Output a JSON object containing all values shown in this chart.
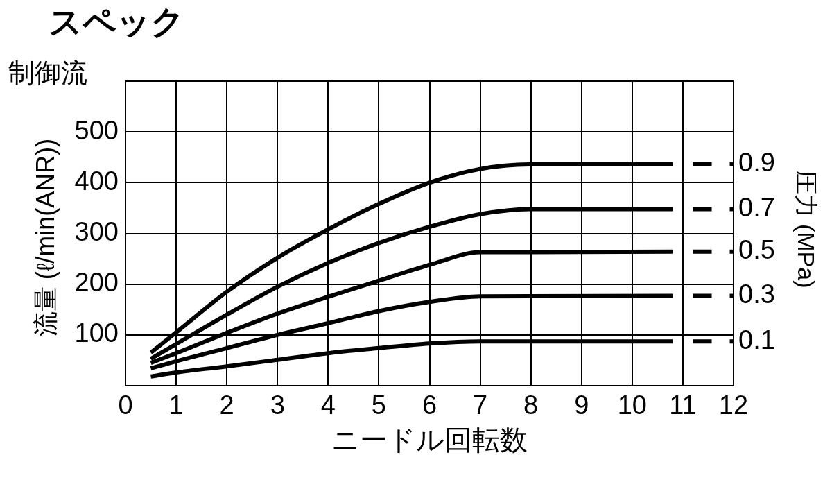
{
  "chart_data": {
    "type": "line",
    "title": "スペック",
    "xlabel": "ニードル回転数",
    "ylabel": "流量 (ℓ/min(ANR))",
    "y2label": "圧力 (MPa)",
    "annotations": [
      "制御流"
    ],
    "xlim": [
      0,
      12
    ],
    "xticks": [
      0,
      1,
      2,
      3,
      4,
      5,
      6,
      7,
      8,
      9,
      10,
      11,
      12
    ],
    "ylim": [
      0,
      600
    ],
    "yticks": [
      100,
      200,
      300,
      400,
      500,
      {
        "value": 600,
        "label": null
      }
    ],
    "grid": true,
    "series": [
      {
        "name": "0.9",
        "color": "#000000",
        "x": [
          0.5,
          1,
          2,
          3,
          4,
          5,
          6,
          7,
          8,
          10.8
        ],
        "values": [
          65,
          105,
          185,
          252,
          308,
          358,
          400,
          427,
          436,
          436
        ]
      },
      {
        "name": "0.7",
        "color": "#000000",
        "x": [
          0.5,
          1,
          2,
          3,
          4,
          5,
          6,
          7,
          8,
          10.8
        ],
        "values": [
          53,
          82,
          140,
          195,
          242,
          281,
          313,
          338,
          348,
          348
        ]
      },
      {
        "name": "0.5",
        "color": "#000000",
        "x": [
          0.5,
          1,
          2,
          3,
          4,
          5,
          6,
          7,
          10.8
        ],
        "values": [
          45,
          64,
          104,
          142,
          175,
          207,
          238,
          263,
          264
        ]
      },
      {
        "name": "0.3",
        "color": "#000000",
        "x": [
          0.5,
          1,
          2,
          3,
          4,
          5,
          6,
          7,
          10.8
        ],
        "values": [
          34,
          48,
          74,
          100,
          123,
          147,
          165,
          176,
          177
        ]
      },
      {
        "name": "0.1",
        "color": "#000000",
        "x": [
          0.5,
          1,
          2,
          3,
          4,
          5,
          6,
          7,
          10.8
        ],
        "values": [
          18,
          26,
          38,
          51,
          64,
          74,
          83,
          87,
          87
        ]
      },
      {
        "color": "#000000",
        "line_style": "dashed",
        "x": [
          11.2,
          12
        ],
        "values": [
          436,
          436
        ]
      },
      {
        "color": "#000000",
        "line_style": "dashed",
        "x": [
          11.2,
          12
        ],
        "values": [
          348,
          348
        ]
      },
      {
        "color": "#000000",
        "line_style": "dashed",
        "x": [
          11.2,
          12
        ],
        "values": [
          264,
          264
        ]
      },
      {
        "color": "#000000",
        "line_style": "dashed",
        "x": [
          11.2,
          12
        ],
        "values": [
          177,
          177
        ]
      },
      {
        "color": "#000000",
        "line_style": "dashed",
        "x": [
          11.2,
          12
        ],
        "values": [
          87,
          87
        ]
      }
    ]
  }
}
